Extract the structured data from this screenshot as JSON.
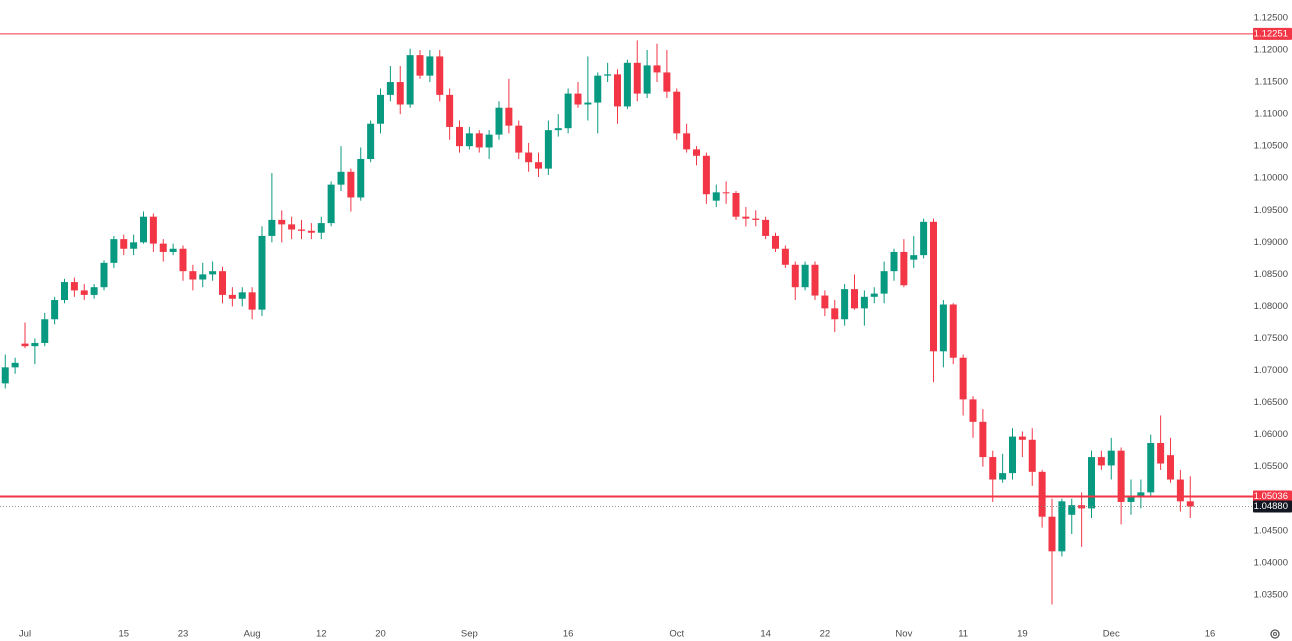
{
  "chart_data": {
    "type": "candlestick",
    "up_color": "#089981",
    "down_color": "#f23645",
    "categories": [
      null,
      null,
      "Jul",
      null,
      null,
      null,
      null,
      null,
      null,
      null,
      null,
      null,
      "15",
      null,
      null,
      null,
      null,
      null,
      "23",
      null,
      null,
      null,
      null,
      null,
      null,
      "Aug",
      null,
      null,
      null,
      null,
      null,
      null,
      "12",
      null,
      null,
      null,
      null,
      null,
      "20",
      null,
      null,
      null,
      null,
      null,
      null,
      null,
      null,
      "Sep",
      null,
      null,
      null,
      null,
      null,
      null,
      null,
      null,
      null,
      "16",
      null,
      null,
      null,
      null,
      null,
      null,
      null,
      null,
      null,
      null,
      "Oct",
      null,
      null,
      null,
      null,
      null,
      null,
      null,
      null,
      "14",
      null,
      null,
      null,
      null,
      null,
      "22",
      null,
      null,
      null,
      null,
      null,
      null,
      null,
      "Nov",
      null,
      null,
      null,
      null,
      null,
      "11",
      null,
      null,
      null,
      null,
      null,
      "19",
      null,
      null,
      null,
      null,
      null,
      null,
      null,
      null,
      "Dec",
      null,
      null,
      null,
      null,
      null,
      null,
      null,
      null,
      null,
      "16"
    ],
    "ohlc": [
      [
        1.068,
        1.0725,
        1.0672,
        1.0705
      ],
      [
        1.0705,
        1.072,
        1.0695,
        1.0712
      ],
      [
        1.0742,
        1.0775,
        1.0735,
        1.0738
      ],
      [
        1.0738,
        1.075,
        1.071,
        1.0743
      ],
      [
        1.0743,
        1.079,
        1.0738,
        1.078
      ],
      [
        1.078,
        1.0815,
        1.0772,
        1.081
      ],
      [
        1.081,
        1.0843,
        1.0805,
        1.0838
      ],
      [
        1.0838,
        1.0845,
        1.0815,
        1.0825
      ],
      [
        1.0825,
        1.0835,
        1.081,
        1.0818
      ],
      [
        1.0818,
        1.0835,
        1.0812,
        1.083
      ],
      [
        1.083,
        1.0872,
        1.0825,
        1.0868
      ],
      [
        1.0868,
        1.091,
        1.086,
        1.0905
      ],
      [
        1.0905,
        1.0912,
        1.088,
        1.089
      ],
      [
        1.089,
        1.0912,
        1.088,
        1.09
      ],
      [
        1.09,
        1.0948,
        1.0898,
        1.094
      ],
      [
        1.094,
        1.0945,
        1.0885,
        1.0898
      ],
      [
        1.0898,
        1.0905,
        1.087,
        1.0885
      ],
      [
        1.0885,
        1.0898,
        1.088,
        1.089
      ],
      [
        1.089,
        1.0895,
        1.084,
        1.0855
      ],
      [
        1.0855,
        1.0865,
        1.0825,
        1.0842
      ],
      [
        1.0842,
        1.0868,
        1.083,
        1.085
      ],
      [
        1.085,
        1.087,
        1.084,
        1.0855
      ],
      [
        1.0855,
        1.0862,
        1.0805,
        1.0818
      ],
      [
        1.0818,
        1.083,
        1.08,
        1.0812
      ],
      [
        1.0812,
        1.083,
        1.08,
        1.0822
      ],
      [
        1.0822,
        1.083,
        1.078,
        1.0795
      ],
      [
        1.0795,
        1.0925,
        1.0785,
        1.091
      ],
      [
        1.091,
        1.1008,
        1.09,
        1.0935
      ],
      [
        1.0935,
        1.095,
        1.09,
        1.0928
      ],
      [
        1.0928,
        1.094,
        1.0905,
        1.092
      ],
      [
        1.092,
        1.0935,
        1.0905,
        1.0918
      ],
      [
        1.0918,
        1.093,
        1.0905,
        1.0915
      ],
      [
        1.0915,
        1.094,
        1.0905,
        1.093
      ],
      [
        1.093,
        1.0995,
        1.0925,
        1.099
      ],
      [
        1.099,
        1.105,
        1.098,
        1.101
      ],
      [
        1.101,
        1.1015,
        1.0948,
        1.097
      ],
      [
        1.097,
        1.1048,
        1.0965,
        1.103
      ],
      [
        1.103,
        1.109,
        1.1025,
        1.1085
      ],
      [
        1.1085,
        1.114,
        1.107,
        1.113
      ],
      [
        1.113,
        1.1175,
        1.112,
        1.115
      ],
      [
        1.115,
        1.1175,
        1.11,
        1.1115
      ],
      [
        1.1115,
        1.1202,
        1.111,
        1.1192
      ],
      [
        1.1192,
        1.12,
        1.1155,
        1.116
      ],
      [
        1.116,
        1.12,
        1.115,
        1.119
      ],
      [
        1.119,
        1.12,
        1.112,
        1.113
      ],
      [
        1.113,
        1.114,
        1.106,
        1.108
      ],
      [
        1.108,
        1.109,
        1.104,
        1.105
      ],
      [
        1.105,
        1.108,
        1.1045,
        1.107
      ],
      [
        1.107,
        1.1075,
        1.104,
        1.1048
      ],
      [
        1.1048,
        1.1075,
        1.103,
        1.1068
      ],
      [
        1.1068,
        1.112,
        1.106,
        1.111
      ],
      [
        1.111,
        1.1155,
        1.107,
        1.1082
      ],
      [
        1.1082,
        1.109,
        1.103,
        1.104
      ],
      [
        1.104,
        1.1055,
        1.101,
        1.1025
      ],
      [
        1.1025,
        1.104,
        1.1002,
        1.1015
      ],
      [
        1.1015,
        1.109,
        1.1005,
        1.1075
      ],
      [
        1.1075,
        1.11,
        1.1065,
        1.1078
      ],
      [
        1.1078,
        1.114,
        1.107,
        1.1132
      ],
      [
        1.1132,
        1.115,
        1.111,
        1.1115
      ],
      [
        1.1115,
        1.119,
        1.109,
        1.1118
      ],
      [
        1.1118,
        1.1165,
        1.107,
        1.116
      ],
      [
        1.116,
        1.118,
        1.115,
        1.1162
      ],
      [
        1.1162,
        1.117,
        1.1085,
        1.1112
      ],
      [
        1.1112,
        1.1185,
        1.1108,
        1.118
      ],
      [
        1.118,
        1.1215,
        1.112,
        1.1132
      ],
      [
        1.1132,
        1.12,
        1.1125,
        1.1176
      ],
      [
        1.1176,
        1.121,
        1.115,
        1.1165
      ],
      [
        1.1165,
        1.12,
        1.1125,
        1.1135
      ],
      [
        1.1135,
        1.114,
        1.106,
        1.107
      ],
      [
        1.107,
        1.1085,
        1.104,
        1.1045
      ],
      [
        1.1045,
        1.105,
        1.102,
        1.1035
      ],
      [
        1.1035,
        1.104,
        1.096,
        1.0975
      ],
      [
        1.0965,
        1.099,
        1.0955,
        1.0978
      ],
      [
        1.0978,
        1.0995,
        1.096,
        1.0977
      ],
      [
        1.0977,
        1.098,
        1.0935,
        1.094
      ],
      [
        1.094,
        1.0955,
        1.0925,
        1.0937
      ],
      [
        1.0937,
        1.095,
        1.0925,
        1.0935
      ],
      [
        1.0935,
        1.094,
        1.0905,
        1.091
      ],
      [
        1.091,
        1.0915,
        1.0885,
        1.089
      ],
      [
        1.089,
        1.0895,
        1.086,
        1.0865
      ],
      [
        1.0865,
        1.087,
        1.081,
        1.083
      ],
      [
        1.083,
        1.087,
        1.0825,
        1.0865
      ],
      [
        1.0865,
        1.087,
        1.081,
        1.0817
      ],
      [
        1.0817,
        1.0825,
        1.0785,
        1.0797
      ],
      [
        1.0797,
        1.081,
        1.076,
        1.078
      ],
      [
        1.078,
        1.0835,
        1.077,
        1.0827
      ],
      [
        1.0827,
        1.085,
        1.0795,
        1.0797
      ],
      [
        1.0797,
        1.0825,
        1.077,
        1.0815
      ],
      [
        1.0815,
        1.083,
        1.0805,
        1.082
      ],
      [
        1.082,
        1.087,
        1.0805,
        1.0855
      ],
      [
        1.0855,
        1.089,
        1.084,
        1.0885
      ],
      [
        1.0885,
        1.0905,
        1.083,
        1.0833
      ],
      [
        1.0873,
        1.091,
        1.086,
        1.088
      ],
      [
        1.088,
        1.0937,
        1.0875,
        1.0932
      ],
      [
        1.0932,
        1.0937,
        1.0682,
        1.073
      ],
      [
        1.073,
        1.081,
        1.0705,
        1.0803
      ],
      [
        1.0803,
        1.0805,
        1.071,
        1.072
      ],
      [
        1.072,
        1.0725,
        1.063,
        1.0655
      ],
      [
        1.0655,
        1.066,
        1.0595,
        1.062
      ],
      [
        1.062,
        1.064,
        1.055,
        1.0565
      ],
      [
        1.0565,
        1.0575,
        1.0495,
        1.053
      ],
      [
        1.053,
        1.057,
        1.0525,
        1.054
      ],
      [
        1.054,
        1.061,
        1.053,
        1.0597
      ],
      [
        1.0597,
        1.0605,
        1.0565,
        1.0592
      ],
      [
        1.0592,
        1.061,
        1.052,
        1.0542
      ],
      [
        1.0542,
        1.0545,
        1.0455,
        1.0472
      ],
      [
        1.0472,
        1.05,
        1.0335,
        1.0418
      ],
      [
        1.0418,
        1.05,
        1.041,
        1.0496
      ],
      [
        1.0475,
        1.05,
        1.0445,
        1.049
      ],
      [
        1.049,
        1.051,
        1.0425,
        1.0485
      ],
      [
        1.0485,
        1.0575,
        1.047,
        1.0565
      ],
      [
        1.0565,
        1.0575,
        1.0545,
        1.0552
      ],
      [
        1.0552,
        1.0595,
        1.053,
        1.0575
      ],
      [
        1.0575,
        1.058,
        1.046,
        1.0495
      ],
      [
        1.0495,
        1.053,
        1.0475,
        1.0505
      ],
      [
        1.0505,
        1.053,
        1.0485,
        1.051
      ],
      [
        1.051,
        1.06,
        1.0505,
        1.0587
      ],
      [
        1.0587,
        1.063,
        1.0545,
        1.0555
      ],
      [
        1.0568,
        1.0595,
        1.0525,
        1.053
      ],
      [
        1.053,
        1.0545,
        1.048,
        1.0496
      ],
      [
        1.0496,
        1.0535,
        1.047,
        1.0488
      ],
      null,
      null
    ],
    "ylim": [
      1.0314,
      1.1278
    ],
    "yticks": [
      {
        "value": 1.035,
        "label": "1.03500"
      },
      {
        "value": 1.04,
        "label": "1.04000"
      },
      {
        "value": 1.045,
        "label": "1.04500"
      },
      {
        "value": 1.05,
        "label": "1.05000"
      },
      {
        "value": 1.055,
        "label": "1.05500"
      },
      {
        "value": 1.06,
        "label": "1.06000"
      },
      {
        "value": 1.065,
        "label": "1.06500"
      },
      {
        "value": 1.07,
        "label": "1.07000"
      },
      {
        "value": 1.075,
        "label": "1.07500"
      },
      {
        "value": 1.08,
        "label": "1.08000"
      },
      {
        "value": 1.085,
        "label": "1.08500"
      },
      {
        "value": 1.09,
        "label": "1.09000"
      },
      {
        "value": 1.095,
        "label": "1.09500"
      },
      {
        "value": 1.1,
        "label": "1.10000"
      },
      {
        "value": 1.105,
        "label": "1.10500"
      },
      {
        "value": 1.11,
        "label": "1.11000"
      },
      {
        "value": 1.115,
        "label": "1.11500"
      },
      {
        "value": 1.12,
        "label": "1.12000"
      },
      {
        "value": 1.125,
        "label": "1.12500"
      }
    ],
    "hlines": [
      {
        "value": 1.12251,
        "color": "#f23645"
      },
      {
        "value": 1.05036,
        "color": "#f23645"
      }
    ],
    "last_price": {
      "value": 1.0488,
      "label": "1.04880",
      "color": "#131722"
    }
  }
}
